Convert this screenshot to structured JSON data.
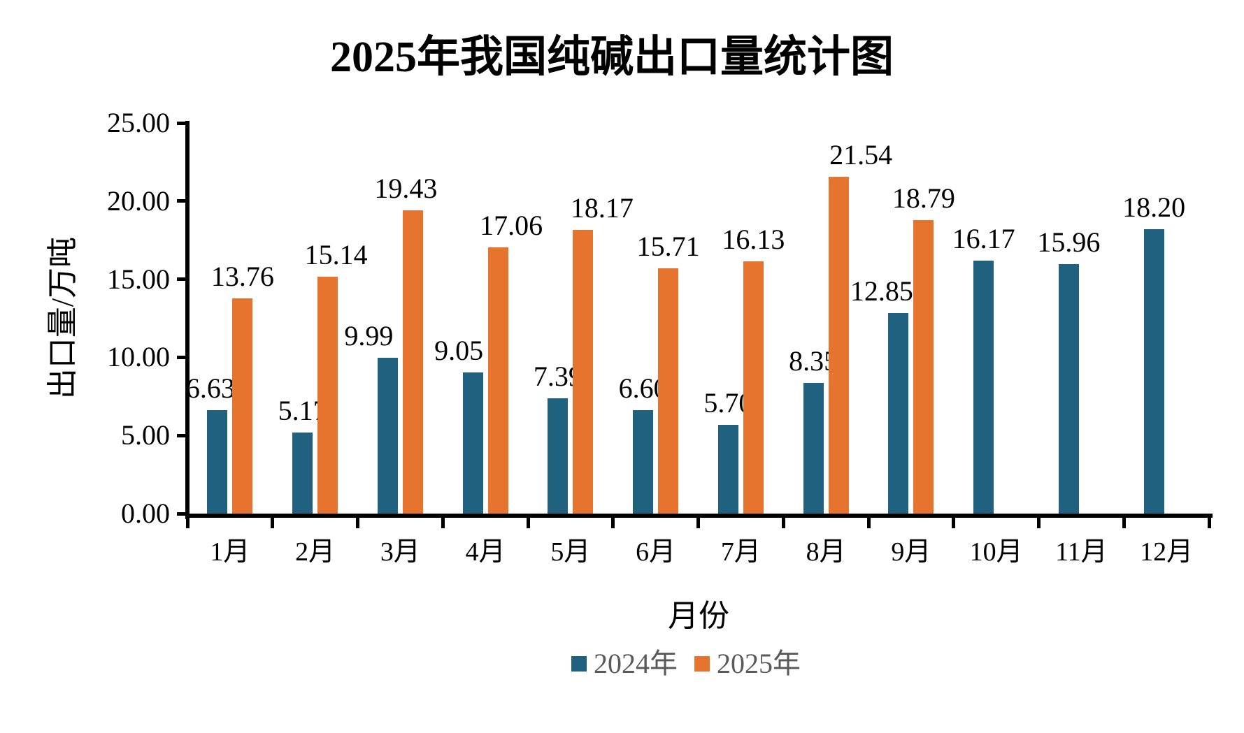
{
  "chart_data": {
    "type": "bar",
    "title": "2025年我国纯碱出口量统计图",
    "xlabel": "月份",
    "ylabel": "出口量/万吨",
    "categories": [
      "1月",
      "2月",
      "3月",
      "4月",
      "5月",
      "6月",
      "7月",
      "8月",
      "9月",
      "10月",
      "11月",
      "12月"
    ],
    "series": [
      {
        "name": "2024年",
        "color": "#1F617E",
        "values": [
          6.63,
          5.17,
          9.99,
          9.05,
          7.39,
          6.6,
          5.7,
          8.35,
          12.85,
          16.17,
          15.96,
          18.2
        ],
        "label_dx": [
          -10,
          0,
          -27,
          -20,
          0,
          0,
          0,
          0,
          -24,
          0,
          0,
          0
        ]
      },
      {
        "name": "2025年",
        "color": "#E6732E",
        "values": [
          13.76,
          15.14,
          19.43,
          17.06,
          18.17,
          15.71,
          16.13,
          21.54,
          18.79,
          null,
          null,
          null
        ],
        "label_dx": [
          0,
          12,
          -10,
          19,
          27,
          0,
          0,
          32,
          0,
          0,
          0,
          0
        ]
      }
    ],
    "ylim": [
      0,
      25
    ],
    "yticks": [
      0,
      5,
      10,
      15,
      20,
      25
    ],
    "ytick_decimals": 2,
    "value_label_decimals": 2,
    "grid": false,
    "value_labels": true,
    "legend_position": "bottom"
  },
  "colors": {
    "axis": "#000000",
    "text": "#000000",
    "legend_text": "#595959",
    "background": "#FFFFFF"
  }
}
